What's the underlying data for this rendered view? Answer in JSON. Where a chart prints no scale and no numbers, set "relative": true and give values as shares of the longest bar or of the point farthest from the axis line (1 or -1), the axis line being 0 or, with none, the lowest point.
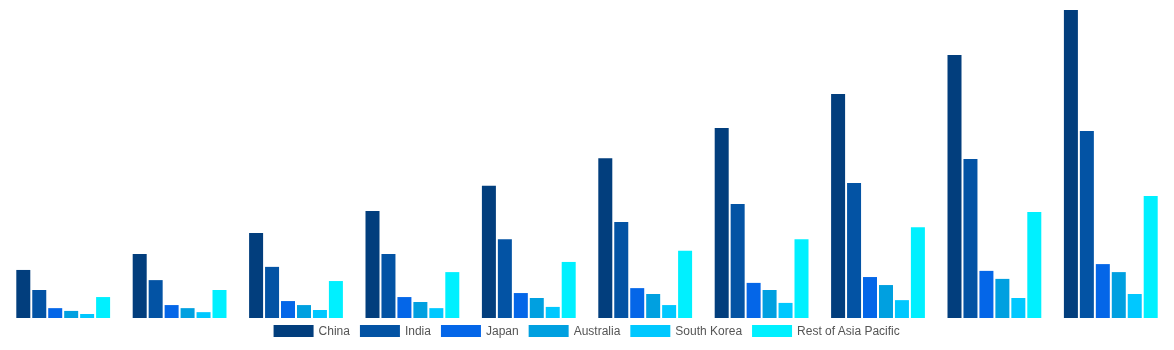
{
  "chart_data": {
    "type": "bar",
    "relative": true,
    "legend": "bottom",
    "categories": [
      null,
      null,
      null,
      null,
      null,
      null,
      null,
      null,
      null,
      null
    ],
    "series": [
      {
        "name": "China",
        "color": "#023e7d",
        "values": [
          0.156,
          0.208,
          0.276,
          0.347,
          0.429,
          0.519,
          0.617,
          0.727,
          0.854,
          1
        ]
      },
      {
        "name": "India",
        "color": "#0353a4",
        "values": [
          0.091,
          0.123,
          0.166,
          0.208,
          0.256,
          0.312,
          0.37,
          0.438,
          0.516,
          0.607
        ]
      },
      {
        "name": "Japan",
        "color": "#0466e8",
        "values": [
          0.032,
          0.042,
          0.055,
          0.068,
          0.081,
          0.097,
          0.114,
          0.133,
          0.153,
          0.175
        ]
      },
      {
        "name": "Australia",
        "color": "#00a0e0",
        "values": [
          0.023,
          0.032,
          0.042,
          0.052,
          0.065,
          0.078,
          0.091,
          0.107,
          0.127,
          0.149
        ]
      },
      {
        "name": "South Korea",
        "color": "#00c8ff",
        "values": [
          0.013,
          0.019,
          0.026,
          0.032,
          0.036,
          0.042,
          0.049,
          0.058,
          0.065,
          0.078
        ]
      },
      {
        "name": "Rest of Asia Pacific",
        "color": "#00f0ff",
        "values": [
          0.068,
          0.091,
          0.12,
          0.149,
          0.182,
          0.218,
          0.256,
          0.295,
          0.344,
          0.396
        ]
      }
    ]
  }
}
